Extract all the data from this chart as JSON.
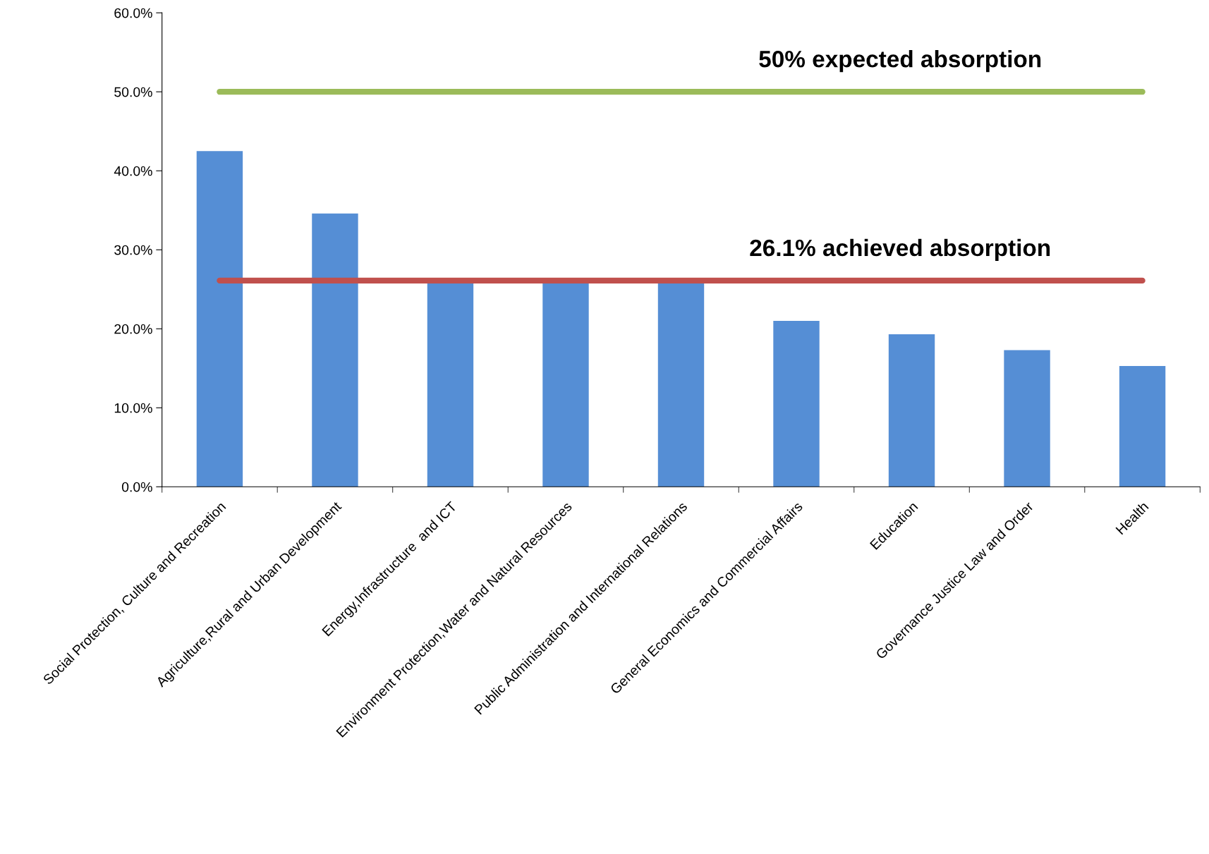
{
  "chart_data": {
    "type": "bar",
    "categories": [
      "Social Protection, Culture and Recreation",
      "Agriculture,Rural and Urban Development",
      "Energy,Infrastructure  and ICT",
      "Environment Protection,Water and Natural Resources",
      "Public Administration and International Relations",
      "General Economics and Commercial Affairs",
      "Education",
      "Governance Justice Law and Order",
      "Health"
    ],
    "values": [
      42.5,
      34.6,
      26.0,
      26.0,
      26.0,
      21.0,
      19.3,
      17.3,
      15.3
    ],
    "color": "#558ed5",
    "ylim": [
      0,
      60
    ],
    "yticks": [
      {
        "value": 0,
        "label": "0.0%"
      },
      {
        "value": 10,
        "label": "10.0%"
      },
      {
        "value": 20,
        "label": "20.0%"
      },
      {
        "value": 30,
        "label": "30.0%"
      },
      {
        "value": 40,
        "label": "40.0%"
      },
      {
        "value": 50,
        "label": "50.0%"
      },
      {
        "value": 60,
        "label": "60.0%"
      }
    ],
    "ref_lines": [
      {
        "axis": "y",
        "value": 50,
        "label": "50% expected absorption",
        "color": "#9bbb59"
      },
      {
        "axis": "y",
        "value": 26.1,
        "label": "26.1% achieved absorption",
        "color": "#c0504d"
      }
    ],
    "grid": false,
    "legend": false
  }
}
